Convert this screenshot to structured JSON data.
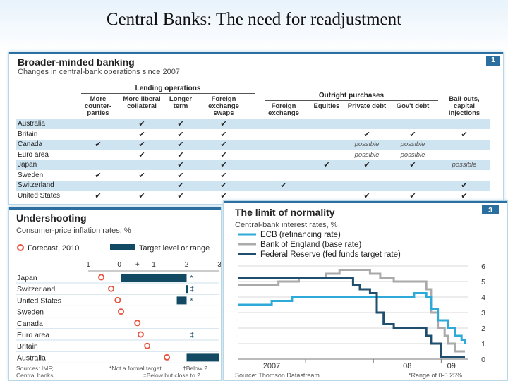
{
  "slide": {
    "title": "Central Banks: The need for readjustment"
  },
  "panel1": {
    "title": "Broader-minded banking",
    "subtitle": "Changes in central-bank operations since 2007",
    "badge": "1",
    "groups": {
      "lending": "Lending operations",
      "outright": "Outright purchases"
    },
    "columns": [
      "More counter-parties",
      "More liberal collateral",
      "Longer term",
      "Foreign exchange swaps",
      "Foreign exchange",
      "Equities",
      "Private debt",
      "Gov't debt",
      "Bail-outs, capital injections"
    ],
    "rows": [
      {
        "country": "Australia",
        "cells": [
          "",
          "✔",
          "✔",
          "✔",
          "",
          "",
          "",
          "",
          ""
        ]
      },
      {
        "country": "Britain",
        "cells": [
          "",
          "✔",
          "✔",
          "✔",
          "",
          "",
          "✔",
          "✔",
          "✔"
        ]
      },
      {
        "country": "Canada",
        "cells": [
          "✔",
          "✔",
          "✔",
          "✔",
          "",
          "",
          "possible",
          "possible",
          ""
        ]
      },
      {
        "country": "Euro area",
        "cells": [
          "",
          "✔",
          "✔",
          "✔",
          "",
          "",
          "possible",
          "possible",
          ""
        ]
      },
      {
        "country": "Japan",
        "cells": [
          "",
          "",
          "✔",
          "✔",
          "",
          "✔",
          "✔",
          "✔",
          "possible"
        ]
      },
      {
        "country": "Sweden",
        "cells": [
          "✔",
          "✔",
          "✔",
          "✔",
          "",
          "",
          "",
          "",
          ""
        ]
      },
      {
        "country": "Switzerland",
        "cells": [
          "",
          "",
          "✔",
          "✔",
          "✔",
          "",
          "",
          "",
          "✔"
        ]
      },
      {
        "country": "United States",
        "cells": [
          "✔",
          "✔",
          "✔",
          "✔",
          "",
          "",
          "✔",
          "✔",
          "✔"
        ]
      }
    ]
  },
  "chart_data": [
    {
      "type": "scatter",
      "title": "Undershooting",
      "subtitle": "Consumer-price inflation rates, %",
      "legend": {
        "forecast": "Forecast, 2010",
        "target": "Target level or range"
      },
      "xlim": [
        -1,
        3
      ],
      "x_ticks": [
        "1",
        "0",
        "+",
        "1",
        "2",
        "3"
      ],
      "categories": [
        "Japan",
        "Switzerland",
        "United States",
        "Sweden",
        "Canada",
        "Euro area",
        "Britain",
        "Australia"
      ],
      "forecast": [
        -0.6,
        -0.3,
        -0.1,
        0.0,
        0.5,
        0.6,
        0.8,
        1.4
      ],
      "target_ranges": [
        [
          0,
          2
        ],
        [
          2,
          2
        ],
        [
          1.7,
          2
        ],
        null,
        null,
        null,
        null,
        [
          2,
          3
        ]
      ],
      "target_markers": [
        {
          "country": "Japan",
          "value": 2,
          "marker": "*"
        },
        {
          "country": "Switzerland",
          "value": 2,
          "marker": "‡"
        },
        {
          "country": "United States",
          "value": 2,
          "marker": "*"
        },
        {
          "country": "Euro area",
          "value": 2,
          "marker": "‡"
        }
      ],
      "sources": [
        "Sources: IMF;",
        "Central banks"
      ],
      "footnotes": [
        "*Not a formal target",
        "†Below 2",
        "‡Below but close to 2"
      ]
    },
    {
      "type": "line",
      "title": "The limit of normality",
      "subtitle": "Central-bank interest rates, %",
      "badge": "3",
      "ylim": [
        0,
        6
      ],
      "y_ticks": [
        "6",
        "5",
        "4",
        "3",
        "2",
        "1",
        "0"
      ],
      "x_ticks": [
        "2007",
        "08",
        "09"
      ],
      "xlim": [
        2006.0,
        2009.35
      ],
      "series": [
        {
          "name": "ECB (refinancing rate)",
          "color": "#2eaad8",
          "points": [
            [
              2006.0,
              3.5
            ],
            [
              2006.5,
              3.75
            ],
            [
              2006.8,
              4.0
            ],
            [
              2007.3,
              4.0
            ],
            [
              2008.5,
              4.0
            ],
            [
              2008.6,
              4.25
            ],
            [
              2008.78,
              4.0
            ],
            [
              2008.85,
              3.25
            ],
            [
              2008.95,
              2.5
            ],
            [
              2009.1,
              2.0
            ],
            [
              2009.2,
              1.5
            ],
            [
              2009.3,
              1.25
            ],
            [
              2009.35,
              1.0
            ]
          ]
        },
        {
          "name": "Bank of England (base rate)",
          "color": "#aaaaaa",
          "points": [
            [
              2006.0,
              4.75
            ],
            [
              2006.3,
              4.75
            ],
            [
              2006.6,
              5.0
            ],
            [
              2006.9,
              5.25
            ],
            [
              2007.3,
              5.5
            ],
            [
              2007.5,
              5.75
            ],
            [
              2007.95,
              5.5
            ],
            [
              2008.1,
              5.25
            ],
            [
              2008.3,
              5.0
            ],
            [
              2008.78,
              4.5
            ],
            [
              2008.85,
              3.0
            ],
            [
              2008.95,
              2.0
            ],
            [
              2009.05,
              1.5
            ],
            [
              2009.1,
              1.0
            ],
            [
              2009.2,
              0.5
            ],
            [
              2009.35,
              0.5
            ]
          ]
        },
        {
          "name": "Federal Reserve (fed funds target rate)",
          "color": "#1f4e6e",
          "points": [
            [
              2006.0,
              5.25
            ],
            [
              2007.1,
              5.25
            ],
            [
              2007.7,
              4.75
            ],
            [
              2007.8,
              4.5
            ],
            [
              2007.95,
              4.25
            ],
            [
              2008.05,
              3.0
            ],
            [
              2008.15,
              2.25
            ],
            [
              2008.3,
              2.0
            ],
            [
              2008.78,
              1.5
            ],
            [
              2008.85,
              1.0
            ],
            [
              2009.0,
              0.125
            ],
            [
              2009.35,
              0.125
            ]
          ]
        }
      ],
      "source": "Source: Thomson Datastream",
      "footnote": "*Range of 0-0.25%"
    }
  ]
}
